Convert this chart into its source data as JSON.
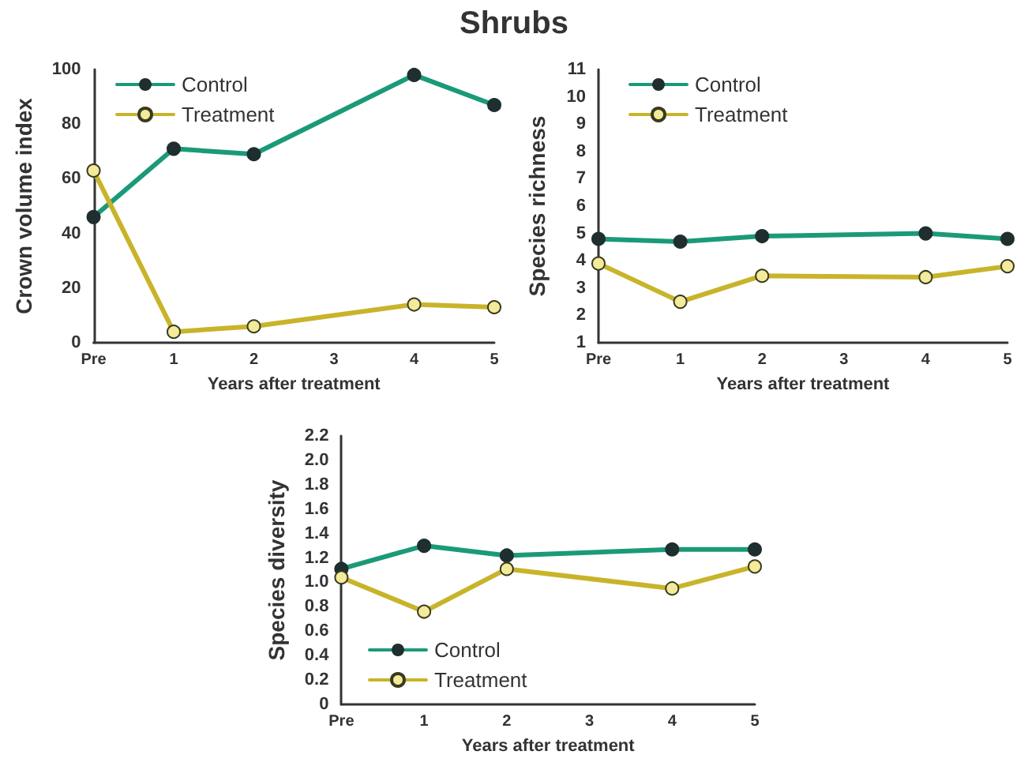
{
  "chart_data": [
    {
      "type": "line",
      "title": "Shrubs",
      "xlabel": "Years after treatment",
      "ylabel": "Crown volume index",
      "categories": [
        "Pre",
        "1",
        "2",
        "3",
        "4",
        "5"
      ],
      "ylim": [
        0,
        100
      ],
      "yticks": [
        0,
        20,
        40,
        60,
        80,
        100
      ],
      "legend": "top left",
      "marker": "circle",
      "grid": false,
      "series": [
        {
          "name": "Control",
          "color": "#1a9a78",
          "values": [
            46,
            71,
            69,
            null,
            98,
            87
          ]
        },
        {
          "name": "Treatment",
          "color": "#c8b42a",
          "values": [
            63,
            4,
            6,
            null,
            14,
            13
          ]
        }
      ]
    },
    {
      "type": "line",
      "xlabel": "Years after treatment",
      "ylabel": "Species richness",
      "categories": [
        "Pre",
        "1",
        "2",
        "3",
        "4",
        "5"
      ],
      "ylim": [
        1,
        11
      ],
      "yticks": [
        1,
        2,
        3,
        4,
        5,
        6,
        7,
        8,
        9,
        10,
        11
      ],
      "legend": "top left",
      "marker": "circle",
      "grid": false,
      "series": [
        {
          "name": "Control",
          "color": "#1a9a78",
          "values": [
            4.8,
            4.7,
            4.9,
            null,
            5.0,
            4.8
          ]
        },
        {
          "name": "Treatment",
          "color": "#c8b42a",
          "values": [
            3.9,
            2.5,
            3.45,
            null,
            3.4,
            3.8
          ]
        }
      ]
    },
    {
      "type": "line",
      "xlabel": "Years after treatment",
      "ylabel": "Species diversity",
      "categories": [
        "Pre",
        "1",
        "2",
        "3",
        "4",
        "5"
      ],
      "ylim": [
        0,
        2.2
      ],
      "yticks": [
        0,
        0.2,
        0.4,
        0.6,
        0.8,
        {
          "value": 1,
          "label": "1.0"
        },
        1.2,
        1.4,
        1.6,
        1.8,
        {
          "value": 2,
          "label": "2.0"
        },
        2.2
      ],
      "legend": "bottom left",
      "marker": "circle",
      "grid": false,
      "series": [
        {
          "name": "Control",
          "color": "#1a9a78",
          "values": [
            1.11,
            1.3,
            1.22,
            null,
            1.27,
            1.27
          ]
        },
        {
          "name": "Treatment",
          "color": "#c8b42a",
          "values": [
            1.04,
            0.76,
            1.11,
            null,
            0.95,
            1.13
          ]
        }
      ]
    }
  ]
}
